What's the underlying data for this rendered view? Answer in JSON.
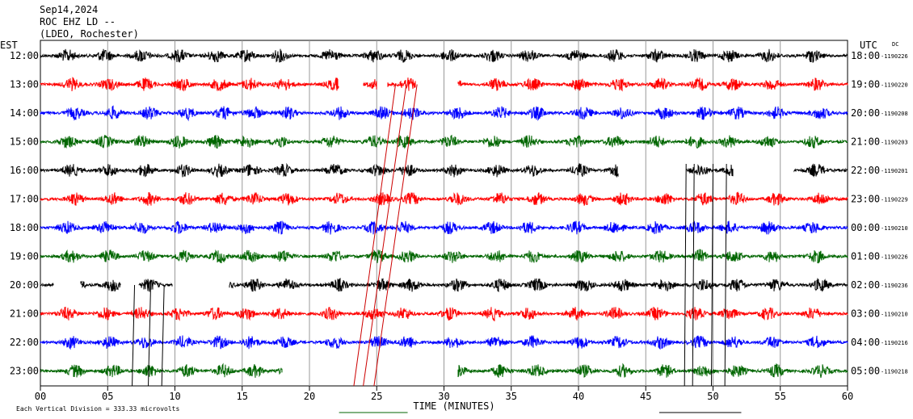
{
  "header": {
    "date": "Sep14,2024",
    "station": "ROC EHZ LD --",
    "network": "(LDEO, Rochester)"
  },
  "chart_data": {
    "type": "line",
    "title": "Sep14,2024",
    "left_timezone": "EST",
    "right_timezone": "UTC",
    "dc_label": "DC",
    "xlabel": "TIME (MINUTES)",
    "xlim": [
      0,
      60
    ],
    "x_ticks": [
      "00",
      "05",
      "10",
      "15",
      "20",
      "25",
      "30",
      "35",
      "40",
      "45",
      "50",
      "55",
      "60"
    ],
    "x_tick_values": [
      0,
      5,
      10,
      15,
      20,
      25,
      30,
      35,
      40,
      45,
      50,
      55,
      60
    ],
    "scale_note": "Each Vertical Division = 333.33 microvolts",
    "grid": true,
    "trace_colors": [
      "#000000",
      "#ff0000",
      "#0000ff",
      "#006600"
    ],
    "rows": [
      {
        "est": "12:00",
        "utc": "18:00",
        "dc": "-1190226",
        "gaps": []
      },
      {
        "est": "13:00",
        "utc": "19:00",
        "dc": "-1190220",
        "gaps": [
          [
            22.2,
            24.0
          ],
          [
            25.0,
            25.8
          ],
          [
            27.9,
            31.0
          ]
        ]
      },
      {
        "est": "14:00",
        "utc": "20:00",
        "dc": "-1190208",
        "gaps": []
      },
      {
        "est": "15:00",
        "utc": "21:00",
        "dc": "-1190203",
        "gaps": []
      },
      {
        "est": "16:00",
        "utc": "22:00",
        "dc": "-1190201",
        "gaps": [
          [
            43.0,
            48.0
          ],
          [
            51.5,
            56.0
          ]
        ]
      },
      {
        "est": "17:00",
        "utc": "23:00",
        "dc": "-1190229",
        "gaps": []
      },
      {
        "est": "18:00",
        "utc": "00:00",
        "dc": "-1190210",
        "gaps": []
      },
      {
        "est": "19:00",
        "utc": "01:00",
        "dc": "-1190226",
        "gaps": []
      },
      {
        "est": "20:00",
        "utc": "02:00",
        "dc": "-1190236",
        "gaps": [
          [
            1.0,
            3.0
          ],
          [
            6.0,
            7.3
          ],
          [
            9.8,
            14.0
          ]
        ]
      },
      {
        "est": "21:00",
        "utc": "03:00",
        "dc": "-1190210",
        "gaps": []
      },
      {
        "est": "22:00",
        "utc": "04:00",
        "dc": "-1190216",
        "gaps": []
      },
      {
        "est": "23:00",
        "utc": "05:00",
        "dc": "-1190218",
        "gaps": [
          [
            18.0,
            31.0
          ]
        ]
      }
    ]
  }
}
